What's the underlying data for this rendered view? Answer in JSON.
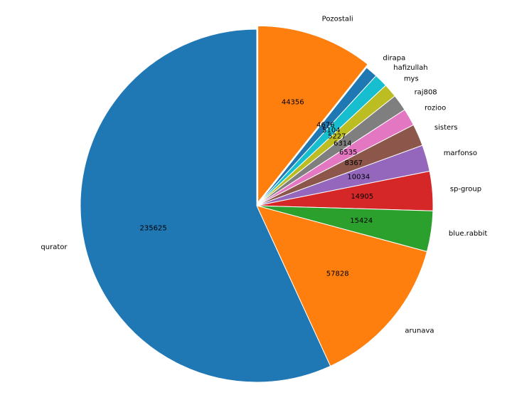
{
  "chart_data": {
    "type": "pie",
    "title": "",
    "start_angle_deg": 90,
    "direction": "clockwise",
    "legend": "none",
    "slices": [
      {
        "label": "Pozostali",
        "value": 44356,
        "color": "#ff7f0e",
        "explode": 0.02
      },
      {
        "label": "dirapa",
        "value": 4676,
        "color": "#1f77b4"
      },
      {
        "label": "hafizullah",
        "value": 5104,
        "color": "#17becf"
      },
      {
        "label": "mys",
        "value": 5227,
        "color": "#bcbd22"
      },
      {
        "label": "raj808",
        "value": 6314,
        "color": "#7f7f7f"
      },
      {
        "label": "rozioo",
        "value": 6535,
        "color": "#e377c2"
      },
      {
        "label": "sisters",
        "value": 8367,
        "color": "#8c564b"
      },
      {
        "label": "marfonso",
        "value": 10034,
        "color": "#9467bd"
      },
      {
        "label": "sp-group",
        "value": 14905,
        "color": "#d62728"
      },
      {
        "label": "blue.rabbit",
        "value": 15424,
        "color": "#2ca02c"
      },
      {
        "label": "arunava",
        "value": 57828,
        "color": "#ff7f0e"
      },
      {
        "label": "qurator",
        "value": 235625,
        "color": "#1f77b4"
      }
    ]
  }
}
